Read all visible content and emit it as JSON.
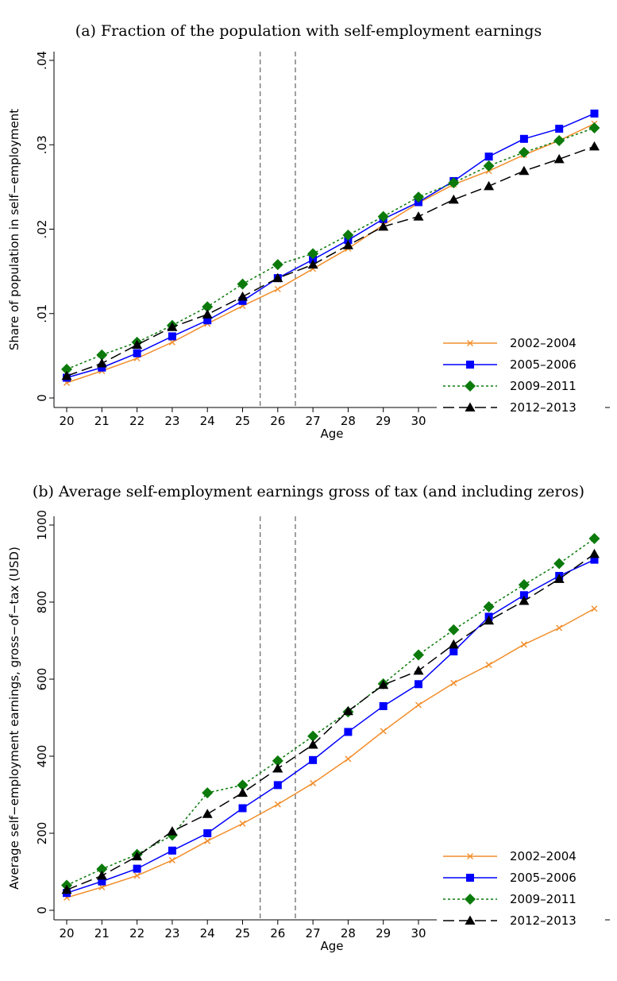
{
  "chart_data": [
    {
      "type": "line",
      "title": "(a) Fraction of the population with self-employment earnings",
      "xlabel": "Age",
      "ylabel": "Share of population in self−employment",
      "x": [
        20,
        21,
        22,
        23,
        24,
        25,
        26,
        27,
        28,
        29,
        30,
        31,
        32,
        33,
        34,
        35
      ],
      "ylim": [
        0,
        0.04
      ],
      "yticks": [
        0,
        0.01,
        0.02,
        0.03,
        0.04
      ],
      "ytick_labels": [
        "0",
        ".01",
        ".02",
        ".03",
        ".04"
      ],
      "vlines": [
        25.5,
        26.5
      ],
      "legend_position": "bottom-right",
      "series": [
        {
          "name": "2002–2004",
          "color": "#f28e2b",
          "marker": "x",
          "dash": "solid",
          "values": [
            0.0018,
            0.0032,
            0.0047,
            0.0066,
            0.0088,
            0.0109,
            0.0129,
            0.0153,
            0.0177,
            0.0205,
            0.0231,
            0.0253,
            0.0269,
            0.0288,
            0.0305,
            0.0325
          ]
        },
        {
          "name": "2005–2006",
          "color": "#0000ff",
          "marker": "square",
          "dash": "solid",
          "values": [
            0.0024,
            0.0036,
            0.0053,
            0.0073,
            0.0092,
            0.0115,
            0.0142,
            0.0164,
            0.0187,
            0.0212,
            0.0232,
            0.0257,
            0.0286,
            0.0307,
            0.0319,
            0.0337
          ]
        },
        {
          "name": "2009–2011",
          "color": "#0b7a0b",
          "marker": "diamond",
          "dash": "dotted",
          "values": [
            0.0034,
            0.0051,
            0.0066,
            0.0086,
            0.0108,
            0.0135,
            0.0158,
            0.0171,
            0.0193,
            0.0215,
            0.0238,
            0.0255,
            0.0275,
            0.0291,
            0.0305,
            0.032
          ]
        },
        {
          "name": "2012–2013",
          "color": "#000000",
          "marker": "triangle",
          "dash": "longdash",
          "values": [
            0.0026,
            0.0041,
            0.0063,
            0.0084,
            0.0099,
            0.012,
            0.0142,
            0.0158,
            0.0181,
            0.0203,
            0.0215,
            0.0235,
            0.0251,
            0.0269,
            0.0283,
            0.0298
          ]
        }
      ]
    },
    {
      "type": "line",
      "title": "(b) Average self-employment earnings gross of tax (and including zeros)",
      "xlabel": "Age",
      "ylabel": "Average self−employment earnings, gross−of−tax (USD)",
      "x": [
        20,
        21,
        22,
        23,
        24,
        25,
        26,
        27,
        28,
        29,
        30,
        31,
        32,
        33,
        34,
        35
      ],
      "ylim": [
        0,
        1000
      ],
      "yticks": [
        0,
        200,
        400,
        600,
        800,
        1000
      ],
      "ytick_labels": [
        "0",
        "200",
        "400",
        "600",
        "800",
        "1000"
      ],
      "vlines": [
        25.5,
        26.5
      ],
      "legend_position": "bottom-right",
      "series": [
        {
          "name": "2002–2004",
          "color": "#f28e2b",
          "marker": "x",
          "dash": "solid",
          "values": [
            33,
            60,
            90,
            130,
            180,
            225,
            275,
            330,
            393,
            465,
            533,
            590,
            637,
            690,
            733,
            783
          ]
        },
        {
          "name": "2005–2006",
          "color": "#0000ff",
          "marker": "square",
          "dash": "solid",
          "values": [
            45,
            75,
            108,
            155,
            200,
            265,
            325,
            390,
            463,
            530,
            587,
            672,
            762,
            818,
            868,
            910
          ]
        },
        {
          "name": "2009–2011",
          "color": "#0b7a0b",
          "marker": "diamond",
          "dash": "dotted",
          "values": [
            65,
            107,
            145,
            195,
            305,
            325,
            388,
            452,
            515,
            588,
            663,
            728,
            788,
            845,
            900,
            965
          ]
        },
        {
          "name": "2012–2013",
          "color": "#000000",
          "marker": "triangle",
          "dash": "longdash",
          "values": [
            53,
            90,
            140,
            205,
            250,
            305,
            368,
            430,
            517,
            585,
            622,
            690,
            752,
            803,
            860,
            925
          ]
        }
      ]
    }
  ]
}
